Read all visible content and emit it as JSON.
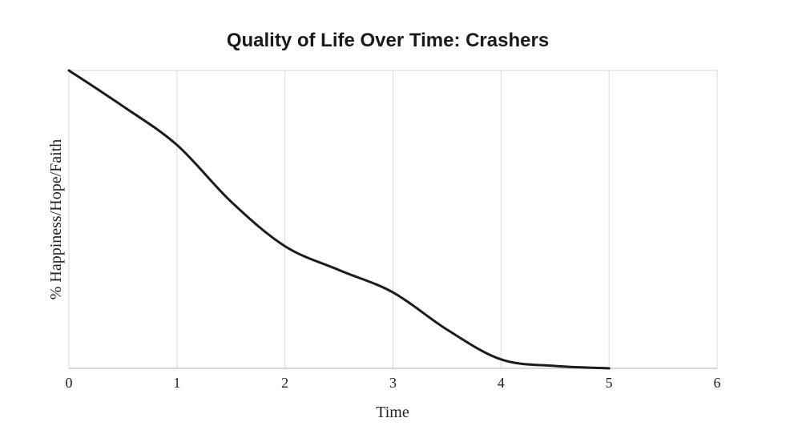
{
  "chart_data": {
    "type": "line",
    "title": "Quality of Life Over Time: Crashers",
    "xlabel": "Time",
    "ylabel": "% Happiness/Hope/Faith",
    "xlim": [
      0,
      6
    ],
    "ylim": [
      0,
      100
    ],
    "x_ticks": [
      "0",
      "1",
      "2",
      "3",
      "4",
      "5",
      "6"
    ],
    "y_tick_labels_shown": false,
    "grid": "vertical",
    "legend": "none",
    "series": [
      {
        "color": "#1c1c1c",
        "x": [
          0,
          0.5,
          1,
          1.5,
          2,
          2.5,
          3,
          3.5,
          4,
          4.5,
          5
        ],
        "y": [
          100,
          88,
          75,
          56,
          41,
          33,
          25.5,
          13,
          3,
          0.8,
          0
        ]
      }
    ]
  }
}
